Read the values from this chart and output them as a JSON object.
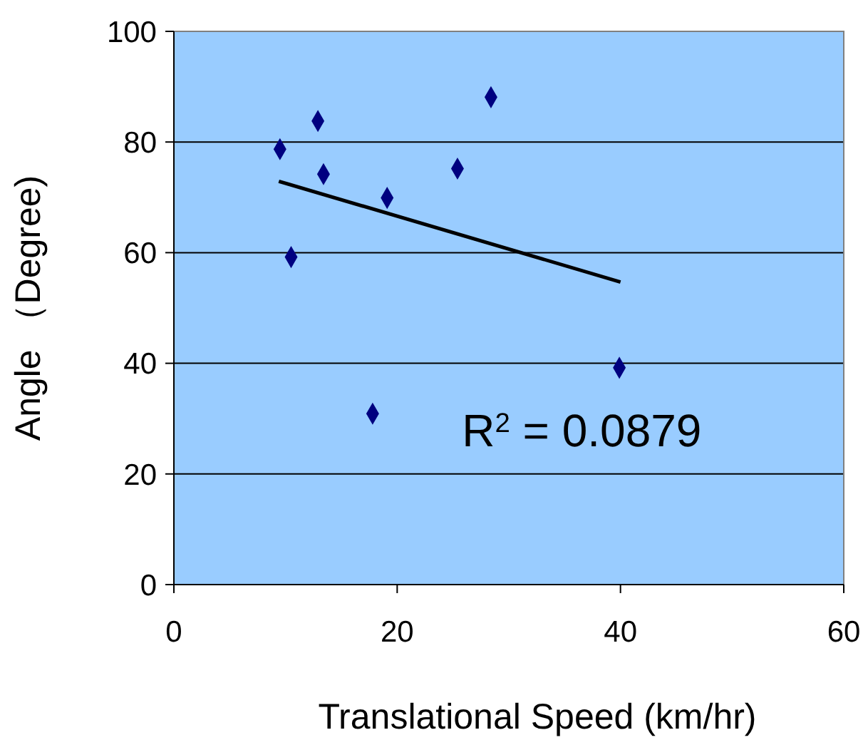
{
  "chart_data": {
    "type": "scatter",
    "xlabel": "Translational Speed (km/hr)",
    "ylabel": "Angle （Degree)",
    "xlim": [
      0,
      60
    ],
    "xticks": [
      0,
      20,
      40,
      60
    ],
    "ylim": [
      0,
      100
    ],
    "yticks": [
      0,
      20,
      40,
      60,
      80,
      100
    ],
    "grid": "y",
    "annotations": [
      "R$^{2}$ = 0.0879"
    ],
    "series": [
      {
        "marker": "diamond",
        "color": "#000080",
        "x": [
          9.5,
          12.9,
          13.4,
          10.5,
          19.1,
          17.8,
          25.4,
          28.4,
          39.9
        ],
        "values": [
          78.7,
          83.8,
          74.2,
          59.2,
          69.9,
          30.9,
          75.2,
          88.1,
          39.2
        ]
      },
      {
        "type": "line",
        "color": "#000000",
        "x": [
          9.4,
          40
        ],
        "values": [
          72.9,
          54.7
        ],
        "line_style": "solid"
      }
    ]
  }
}
